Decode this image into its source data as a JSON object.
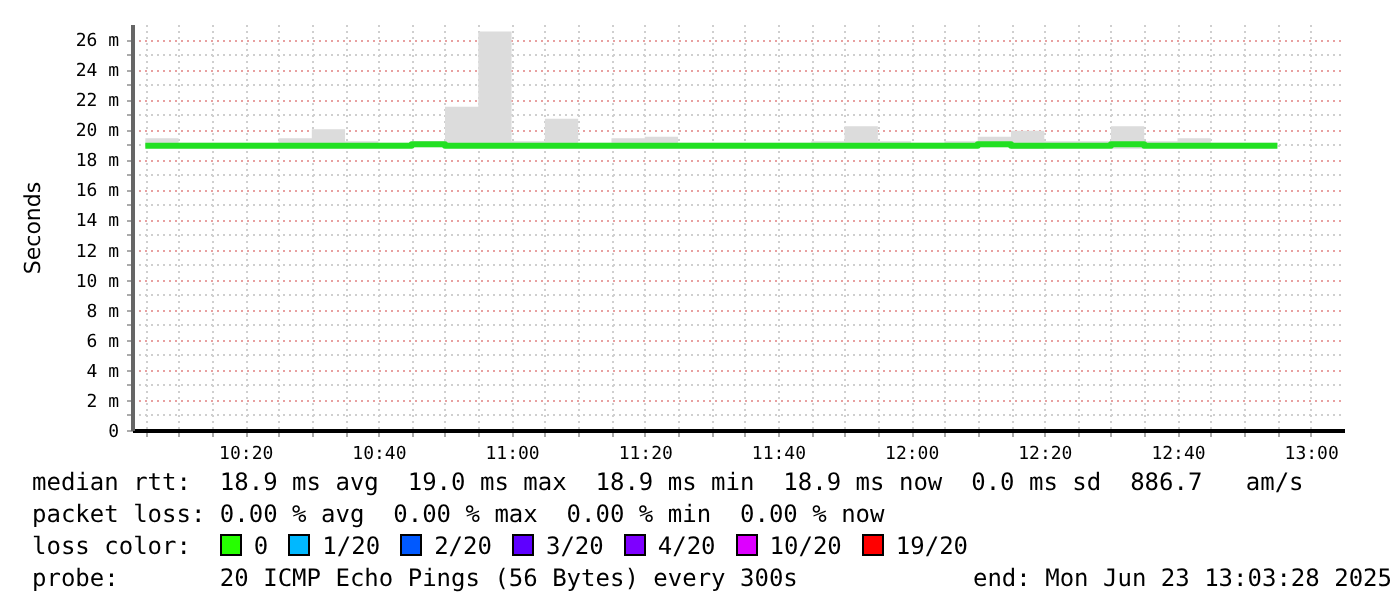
{
  "chart_data": {
    "type": "step",
    "ylabel": "Seconds",
    "x": [
      "2025-06-23T10:05",
      "2025-06-23T10:10",
      "2025-06-23T10:15",
      "2025-06-23T10:20",
      "2025-06-23T10:25",
      "2025-06-23T10:30",
      "2025-06-23T10:35",
      "2025-06-23T10:40",
      "2025-06-23T10:45",
      "2025-06-23T10:50",
      "2025-06-23T10:55",
      "2025-06-23T11:00",
      "2025-06-23T11:05",
      "2025-06-23T11:10",
      "2025-06-23T11:15",
      "2025-06-23T11:20",
      "2025-06-23T11:25",
      "2025-06-23T11:30",
      "2025-06-23T11:35",
      "2025-06-23T11:40",
      "2025-06-23T11:45",
      "2025-06-23T11:50",
      "2025-06-23T11:55",
      "2025-06-23T12:00",
      "2025-06-23T12:05",
      "2025-06-23T12:10",
      "2025-06-23T12:15",
      "2025-06-23T12:20",
      "2025-06-23T12:25",
      "2025-06-23T12:30",
      "2025-06-23T12:35",
      "2025-06-23T12:40",
      "2025-06-23T12:45",
      "2025-06-23T12:50",
      "2025-06-23T12:55"
    ],
    "series": [
      {
        "color": "#22e022",
        "values": [
          18.9,
          18.9,
          18.9,
          18.9,
          18.9,
          18.9,
          18.9,
          18.9,
          19.0,
          18.9,
          18.9,
          18.9,
          18.9,
          18.9,
          18.9,
          18.9,
          18.9,
          18.9,
          18.9,
          18.9,
          18.9,
          18.9,
          18.9,
          18.9,
          18.9,
          19.0,
          18.9,
          18.9,
          18.9,
          19.0,
          18.9,
          18.9,
          18.9,
          18.9,
          18.9
        ],
        "lower": [
          18.8,
          18.8,
          18.8,
          18.8,
          18.8,
          18.8,
          18.8,
          18.8,
          18.8,
          18.8,
          18.8,
          18.8,
          18.8,
          18.8,
          18.8,
          18.8,
          18.8,
          18.8,
          18.8,
          18.8,
          18.8,
          18.8,
          18.8,
          18.8,
          18.8,
          18.8,
          18.7,
          18.8,
          18.8,
          18.7,
          18.8,
          18.8,
          18.8,
          18.8,
          18.8
        ],
        "upper": [
          19.4,
          19.1,
          19.1,
          19.1,
          19.4,
          20.0,
          19.2,
          19.1,
          19.2,
          21.5,
          26.5,
          19.2,
          20.7,
          19.1,
          19.4,
          19.5,
          19.1,
          19.1,
          19.1,
          19.1,
          19.2,
          20.2,
          19.2,
          19.1,
          19.2,
          19.5,
          19.9,
          19.2,
          19.2,
          20.2,
          19.2,
          19.4,
          19.1,
          19.1,
          19.1
        ]
      }
    ],
    "xlim": [
      "2025-06-23T10:03",
      "2025-06-23T13:05"
    ],
    "xticks": [
      {
        "value": "2025-06-23T10:05",
        "label": null
      },
      {
        "value": "2025-06-23T10:10",
        "label": null
      },
      {
        "value": "2025-06-23T10:15",
        "label": null
      },
      {
        "value": "2025-06-23T10:20",
        "label": "10:20"
      },
      {
        "value": "2025-06-23T10:25",
        "label": null
      },
      {
        "value": "2025-06-23T10:30",
        "label": null
      },
      {
        "value": "2025-06-23T10:35",
        "label": null
      },
      {
        "value": "2025-06-23T10:40",
        "label": "10:40"
      },
      {
        "value": "2025-06-23T10:45",
        "label": null
      },
      {
        "value": "2025-06-23T10:50",
        "label": null
      },
      {
        "value": "2025-06-23T10:55",
        "label": null
      },
      {
        "value": "2025-06-23T11:00",
        "label": "11:00"
      },
      {
        "value": "2025-06-23T11:05",
        "label": null
      },
      {
        "value": "2025-06-23T11:10",
        "label": null
      },
      {
        "value": "2025-06-23T11:15",
        "label": null
      },
      {
        "value": "2025-06-23T11:20",
        "label": "11:20"
      },
      {
        "value": "2025-06-23T11:25",
        "label": null
      },
      {
        "value": "2025-06-23T11:30",
        "label": null
      },
      {
        "value": "2025-06-23T11:35",
        "label": null
      },
      {
        "value": "2025-06-23T11:40",
        "label": "11:40"
      },
      {
        "value": "2025-06-23T11:45",
        "label": null
      },
      {
        "value": "2025-06-23T11:50",
        "label": null
      },
      {
        "value": "2025-06-23T11:55",
        "label": null
      },
      {
        "value": "2025-06-23T12:00",
        "label": "12:00"
      },
      {
        "value": "2025-06-23T12:05",
        "label": null
      },
      {
        "value": "2025-06-23T12:10",
        "label": null
      },
      {
        "value": "2025-06-23T12:15",
        "label": null
      },
      {
        "value": "2025-06-23T12:20",
        "label": "12:20"
      },
      {
        "value": "2025-06-23T12:25",
        "label": null
      },
      {
        "value": "2025-06-23T12:30",
        "label": null
      },
      {
        "value": "2025-06-23T12:35",
        "label": null
      },
      {
        "value": "2025-06-23T12:40",
        "label": "12:40"
      },
      {
        "value": "2025-06-23T12:45",
        "label": null
      },
      {
        "value": "2025-06-23T12:50",
        "label": null
      },
      {
        "value": "2025-06-23T12:55",
        "label": null
      },
      {
        "value": "2025-06-23T13:00",
        "label": "13:00"
      }
    ],
    "ylim": [
      0,
      27
    ],
    "yticks": [
      0,
      {
        "value": 1,
        "label": null
      },
      {
        "value": 2,
        "label": "2 m"
      },
      {
        "value": 3,
        "label": null
      },
      {
        "value": 4,
        "label": "4 m"
      },
      {
        "value": 5,
        "label": null
      },
      {
        "value": 6,
        "label": "6 m"
      },
      {
        "value": 7,
        "label": null
      },
      {
        "value": 8,
        "label": "8 m"
      },
      {
        "value": 9,
        "label": null
      },
      {
        "value": 10,
        "label": "10 m"
      },
      {
        "value": 11,
        "label": null
      },
      {
        "value": 12,
        "label": "12 m"
      },
      {
        "value": 13,
        "label": null
      },
      {
        "value": 14,
        "label": "14 m"
      },
      {
        "value": 15,
        "label": null
      },
      {
        "value": 16,
        "label": "16 m"
      },
      {
        "value": 17,
        "label": null
      },
      {
        "value": 18,
        "label": "18 m"
      },
      {
        "value": 19,
        "label": null
      },
      {
        "value": 20,
        "label": "20 m"
      },
      {
        "value": 21,
        "label": null
      },
      {
        "value": 22,
        "label": "22 m"
      },
      {
        "value": 23,
        "label": null
      },
      {
        "value": 24,
        "label": "24 m"
      },
      {
        "value": 25,
        "label": null
      },
      {
        "value": 26,
        "label": "26 m"
      }
    ],
    "grid": true,
    "annotations": [
      "median rtt:  18.9 ms avg  19.0 ms max  18.9 ms min  18.9 ms now  0.0 ms sd  886.7   am/s",
      "packet loss: 0.00 % avg  0.00 % max  0.00 % min  0.00 % now",
      "loss color:",
      "0",
      "1/20",
      "2/20",
      "3/20",
      "4/20",
      "10/20",
      "19/20",
      "probe:       20 ICMP Echo Pings (56 Bytes) every 300s",
      "end: Mon Jun 23 13:03:28 2025"
    ]
  }
}
